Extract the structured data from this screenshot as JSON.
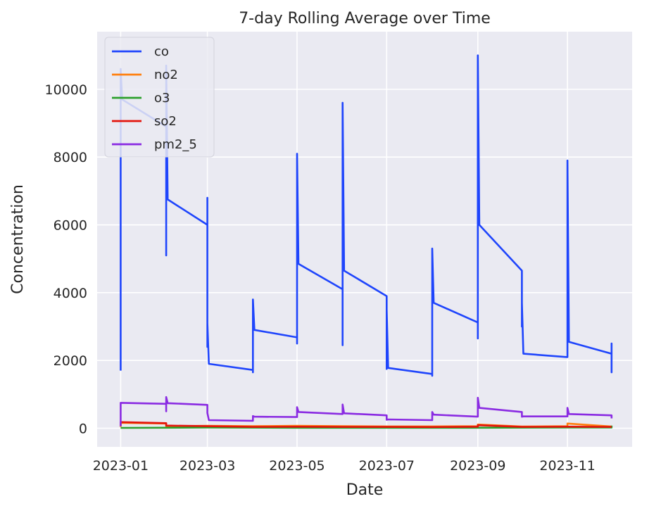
{
  "chart_data": {
    "type": "line",
    "title": "7-day Rolling Average over Time",
    "xlabel": "Date",
    "ylabel": "Concentration",
    "x_axis_type": "date",
    "xlim": [
      "2022-12-16",
      "2023-12-15"
    ],
    "ylim": [
      -550,
      11700
    ],
    "x_ticks": [
      "2023-01",
      "2023-03",
      "2023-05",
      "2023-07",
      "2023-09",
      "2023-11"
    ],
    "y_ticks": [
      0,
      2000,
      4000,
      6000,
      8000,
      10000
    ],
    "grid": true,
    "background_color": "#eaeaf2",
    "legend_position": "top-left",
    "series": [
      {
        "name": "co",
        "color": "#1f45fc",
        "points": [
          [
            "2023-01-01",
            1700
          ],
          [
            "2023-01-01",
            2800
          ],
          [
            "2023-01-01",
            2400
          ],
          [
            "2023-01-01",
            10600
          ],
          [
            "2023-01-02",
            9700
          ],
          [
            "2023-02-01",
            8900
          ],
          [
            "2023-02-01",
            5100
          ],
          [
            "2023-02-01",
            10700
          ],
          [
            "2023-02-02",
            6750
          ],
          [
            "2023-03-01",
            6000
          ],
          [
            "2023-03-01",
            5500
          ],
          [
            "2023-03-01",
            6800
          ],
          [
            "2023-03-01",
            2400
          ],
          [
            "2023-03-01",
            3100
          ],
          [
            "2023-03-02",
            1900
          ],
          [
            "2023-04-01",
            1720
          ],
          [
            "2023-04-01",
            1650
          ],
          [
            "2023-04-01",
            2500
          ],
          [
            "2023-04-01",
            2300
          ],
          [
            "2023-04-01",
            3800
          ],
          [
            "2023-04-02",
            2900
          ],
          [
            "2023-05-01",
            2680
          ],
          [
            "2023-05-01",
            2500
          ],
          [
            "2023-05-01",
            3300
          ],
          [
            "2023-05-01",
            8100
          ],
          [
            "2023-05-02",
            4850
          ],
          [
            "2023-06-01",
            4100
          ],
          [
            "2023-06-01",
            3500
          ],
          [
            "2023-06-01",
            2450
          ],
          [
            "2023-06-01",
            9600
          ],
          [
            "2023-06-02",
            4650
          ],
          [
            "2023-07-01",
            3900
          ],
          [
            "2023-07-01",
            3200
          ],
          [
            "2023-07-01",
            2200
          ],
          [
            "2023-07-01",
            1750
          ],
          [
            "2023-07-01",
            3500
          ],
          [
            "2023-07-02",
            1780
          ],
          [
            "2023-08-01",
            1600
          ],
          [
            "2023-08-01",
            1550
          ],
          [
            "2023-08-01",
            2100
          ],
          [
            "2023-08-01",
            5300
          ],
          [
            "2023-08-02",
            3700
          ],
          [
            "2023-09-01",
            3120
          ],
          [
            "2023-09-01",
            2650
          ],
          [
            "2023-09-01",
            4800
          ],
          [
            "2023-09-01",
            11000
          ],
          [
            "2023-09-02",
            6000
          ],
          [
            "2023-10-01",
            4650
          ],
          [
            "2023-10-01",
            3000
          ],
          [
            "2023-10-01",
            3700
          ],
          [
            "2023-10-02",
            2200
          ],
          [
            "2023-11-01",
            2100
          ],
          [
            "2023-11-01",
            2400
          ],
          [
            "2023-11-01",
            7900
          ],
          [
            "2023-11-02",
            2550
          ],
          [
            "2023-12-01",
            2200
          ],
          [
            "2023-12-01",
            1650
          ],
          [
            "2023-12-01",
            2500
          ],
          [
            "2023-12-01",
            1700
          ]
        ]
      },
      {
        "name": "no2",
        "color": "#ff7f0e",
        "points": [
          [
            "2023-01-01",
            40
          ],
          [
            "2023-01-01",
            160
          ],
          [
            "2023-02-01",
            140
          ],
          [
            "2023-02-01",
            60
          ],
          [
            "2023-03-01",
            70
          ],
          [
            "2023-04-01",
            60
          ],
          [
            "2023-05-01",
            70
          ],
          [
            "2023-06-01",
            60
          ],
          [
            "2023-07-01",
            55
          ],
          [
            "2023-08-01",
            55
          ],
          [
            "2023-09-01",
            60
          ],
          [
            "2023-09-01",
            110
          ],
          [
            "2023-10-01",
            50
          ],
          [
            "2023-11-01",
            60
          ],
          [
            "2023-11-01",
            140
          ],
          [
            "2023-12-01",
            50
          ]
        ]
      },
      {
        "name": "o3",
        "color": "#2ca02c",
        "points": [
          [
            "2023-01-01",
            10
          ],
          [
            "2023-03-01",
            20
          ],
          [
            "2023-05-01",
            15
          ],
          [
            "2023-07-01",
            15
          ],
          [
            "2023-09-01",
            15
          ],
          [
            "2023-11-01",
            20
          ],
          [
            "2023-12-01",
            20
          ],
          [
            "2023-12-01",
            80
          ]
        ]
      },
      {
        "name": "so2",
        "color": "#e3140c",
        "points": [
          [
            "2023-01-01",
            60
          ],
          [
            "2023-01-01",
            180
          ],
          [
            "2023-02-01",
            150
          ],
          [
            "2023-02-01",
            80
          ],
          [
            "2023-03-01",
            60
          ],
          [
            "2023-04-01",
            40
          ],
          [
            "2023-05-01",
            45
          ],
          [
            "2023-06-01",
            40
          ],
          [
            "2023-07-01",
            40
          ],
          [
            "2023-08-01",
            35
          ],
          [
            "2023-09-01",
            45
          ],
          [
            "2023-09-01",
            90
          ],
          [
            "2023-10-01",
            40
          ],
          [
            "2023-11-01",
            45
          ],
          [
            "2023-12-01",
            40
          ]
        ]
      },
      {
        "name": "pm2_5",
        "color": "#8a2be2",
        "points": [
          [
            "2023-01-01",
            60
          ],
          [
            "2023-01-01",
            750
          ],
          [
            "2023-02-01",
            720
          ],
          [
            "2023-02-01",
            500
          ],
          [
            "2023-02-01",
            920
          ],
          [
            "2023-02-02",
            740
          ],
          [
            "2023-03-01",
            690
          ],
          [
            "2023-03-01",
            450
          ],
          [
            "2023-03-02",
            240
          ],
          [
            "2023-04-01",
            220
          ],
          [
            "2023-04-01",
            360
          ],
          [
            "2023-04-02",
            340
          ],
          [
            "2023-05-01",
            330
          ],
          [
            "2023-05-01",
            620
          ],
          [
            "2023-05-02",
            480
          ],
          [
            "2023-06-01",
            420
          ],
          [
            "2023-06-01",
            700
          ],
          [
            "2023-06-02",
            440
          ],
          [
            "2023-07-01",
            380
          ],
          [
            "2023-07-01",
            250
          ],
          [
            "2023-07-02",
            260
          ],
          [
            "2023-08-01",
            240
          ],
          [
            "2023-08-01",
            480
          ],
          [
            "2023-08-02",
            400
          ],
          [
            "2023-09-01",
            340
          ],
          [
            "2023-09-01",
            900
          ],
          [
            "2023-09-02",
            600
          ],
          [
            "2023-10-01",
            480
          ],
          [
            "2023-10-01",
            340
          ],
          [
            "2023-10-02",
            350
          ],
          [
            "2023-11-01",
            350
          ],
          [
            "2023-11-01",
            600
          ],
          [
            "2023-11-02",
            420
          ],
          [
            "2023-12-01",
            380
          ],
          [
            "2023-12-01",
            290
          ]
        ]
      }
    ]
  }
}
